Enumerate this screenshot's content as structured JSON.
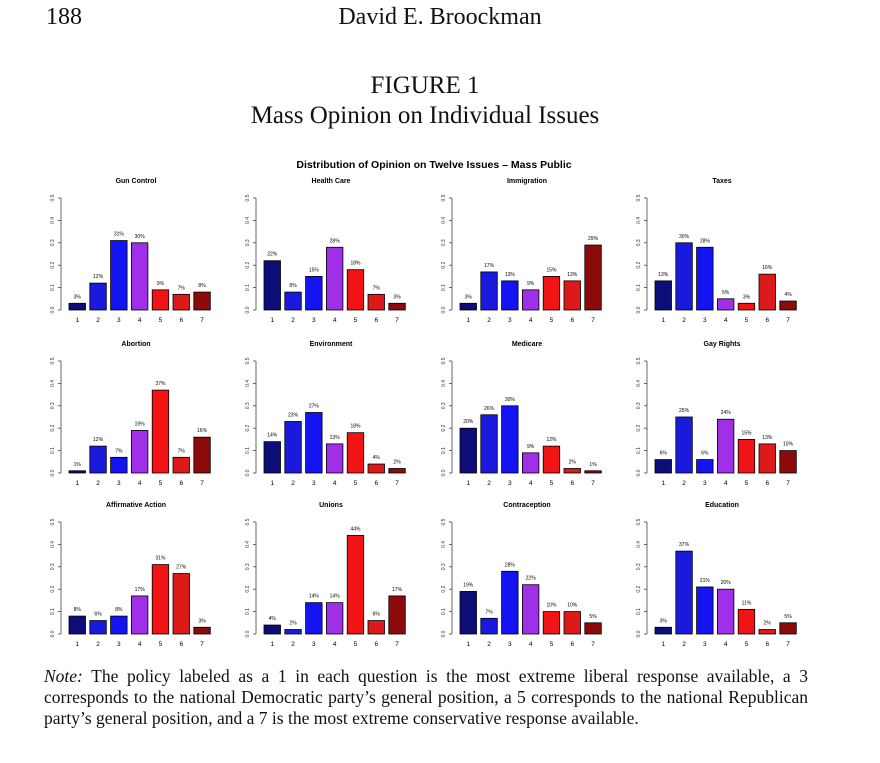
{
  "header": {
    "page_number": "188",
    "author": "David E. Broockman"
  },
  "figure": {
    "label": "FIGURE 1",
    "title": "Mass Opinion on Individual Issues"
  },
  "chart_data": {
    "type": "bar",
    "title": "Distribution of Opinion on Twelve Issues – Mass Public",
    "categories": [
      "1",
      "2",
      "3",
      "4",
      "5",
      "6",
      "7"
    ],
    "ylim": [
      0,
      0.5
    ],
    "y_ticks": [
      "0.0",
      "0.1",
      "0.2",
      "0.3",
      "0.4",
      "0.5"
    ],
    "bar_colors": [
      "#0d0d78",
      "#1a1adc",
      "#1414f2",
      "#a030e8",
      "#f21414",
      "#dc1a1a",
      "#8c0a0a"
    ],
    "panels": [
      {
        "name": "Gun Control",
        "values": [
          0.03,
          0.12,
          0.31,
          0.3,
          0.09,
          0.07,
          0.08
        ],
        "labels": [
          "3%",
          "12%",
          "31%",
          "30%",
          "9%",
          "7%",
          "8%"
        ]
      },
      {
        "name": "Health Care",
        "values": [
          0.22,
          0.08,
          0.15,
          0.28,
          0.18,
          0.07,
          0.03
        ],
        "labels": [
          "22%",
          "8%",
          "15%",
          "28%",
          "18%",
          "7%",
          "3%"
        ]
      },
      {
        "name": "Immigration",
        "values": [
          0.03,
          0.17,
          0.13,
          0.09,
          0.15,
          0.13,
          0.29
        ],
        "labels": [
          "3%",
          "17%",
          "13%",
          "9%",
          "15%",
          "13%",
          "29%"
        ]
      },
      {
        "name": "Taxes",
        "values": [
          0.13,
          0.3,
          0.28,
          0.05,
          0.03,
          0.16,
          0.04
        ],
        "labels": [
          "13%",
          "30%",
          "28%",
          "5%",
          "3%",
          "16%",
          "4%"
        ]
      },
      {
        "name": "Abortion",
        "values": [
          0.01,
          0.12,
          0.07,
          0.19,
          0.37,
          0.07,
          0.16
        ],
        "labels": [
          "1%",
          "12%",
          "7%",
          "19%",
          "37%",
          "7%",
          "16%"
        ]
      },
      {
        "name": "Environment",
        "values": [
          0.14,
          0.23,
          0.27,
          0.13,
          0.18,
          0.04,
          0.02
        ],
        "labels": [
          "14%",
          "23%",
          "27%",
          "13%",
          "18%",
          "4%",
          "2%"
        ]
      },
      {
        "name": "Medicare",
        "values": [
          0.2,
          0.26,
          0.3,
          0.09,
          0.12,
          0.02,
          0.01
        ],
        "labels": [
          "20%",
          "26%",
          "30%",
          "9%",
          "12%",
          "2%",
          "1%"
        ]
      },
      {
        "name": "Gay Rights",
        "values": [
          0.06,
          0.25,
          0.06,
          0.24,
          0.15,
          0.13,
          0.1
        ],
        "labels": [
          "6%",
          "25%",
          "6%",
          "24%",
          "15%",
          "13%",
          "10%"
        ]
      },
      {
        "name": "Affirmative Action",
        "values": [
          0.08,
          0.06,
          0.08,
          0.17,
          0.31,
          0.27,
          0.03
        ],
        "labels": [
          "8%",
          "6%",
          "8%",
          "17%",
          "31%",
          "27%",
          "3%"
        ]
      },
      {
        "name": "Unions",
        "values": [
          0.04,
          0.02,
          0.14,
          0.14,
          0.44,
          0.06,
          0.17
        ],
        "labels": [
          "4%",
          "2%",
          "14%",
          "14%",
          "44%",
          "6%",
          "17%"
        ]
      },
      {
        "name": "Contraception",
        "values": [
          0.19,
          0.07,
          0.28,
          0.22,
          0.1,
          0.1,
          0.05
        ],
        "labels": [
          "19%",
          "7%",
          "28%",
          "22%",
          "10%",
          "10%",
          "5%"
        ]
      },
      {
        "name": "Education",
        "values": [
          0.03,
          0.37,
          0.21,
          0.2,
          0.11,
          0.02,
          0.05
        ],
        "labels": [
          "3%",
          "37%",
          "21%",
          "20%",
          "11%",
          "2%",
          "5%"
        ]
      }
    ]
  },
  "note": {
    "label": "Note:",
    "text": " The policy labeled as a 1 in each question is the most extreme liberal response available, a 3 corresponds to the national Democratic party’s general position, a 5 corresponds to the national Republican party’s general position, and a 7 is the most extreme conservative response available."
  }
}
